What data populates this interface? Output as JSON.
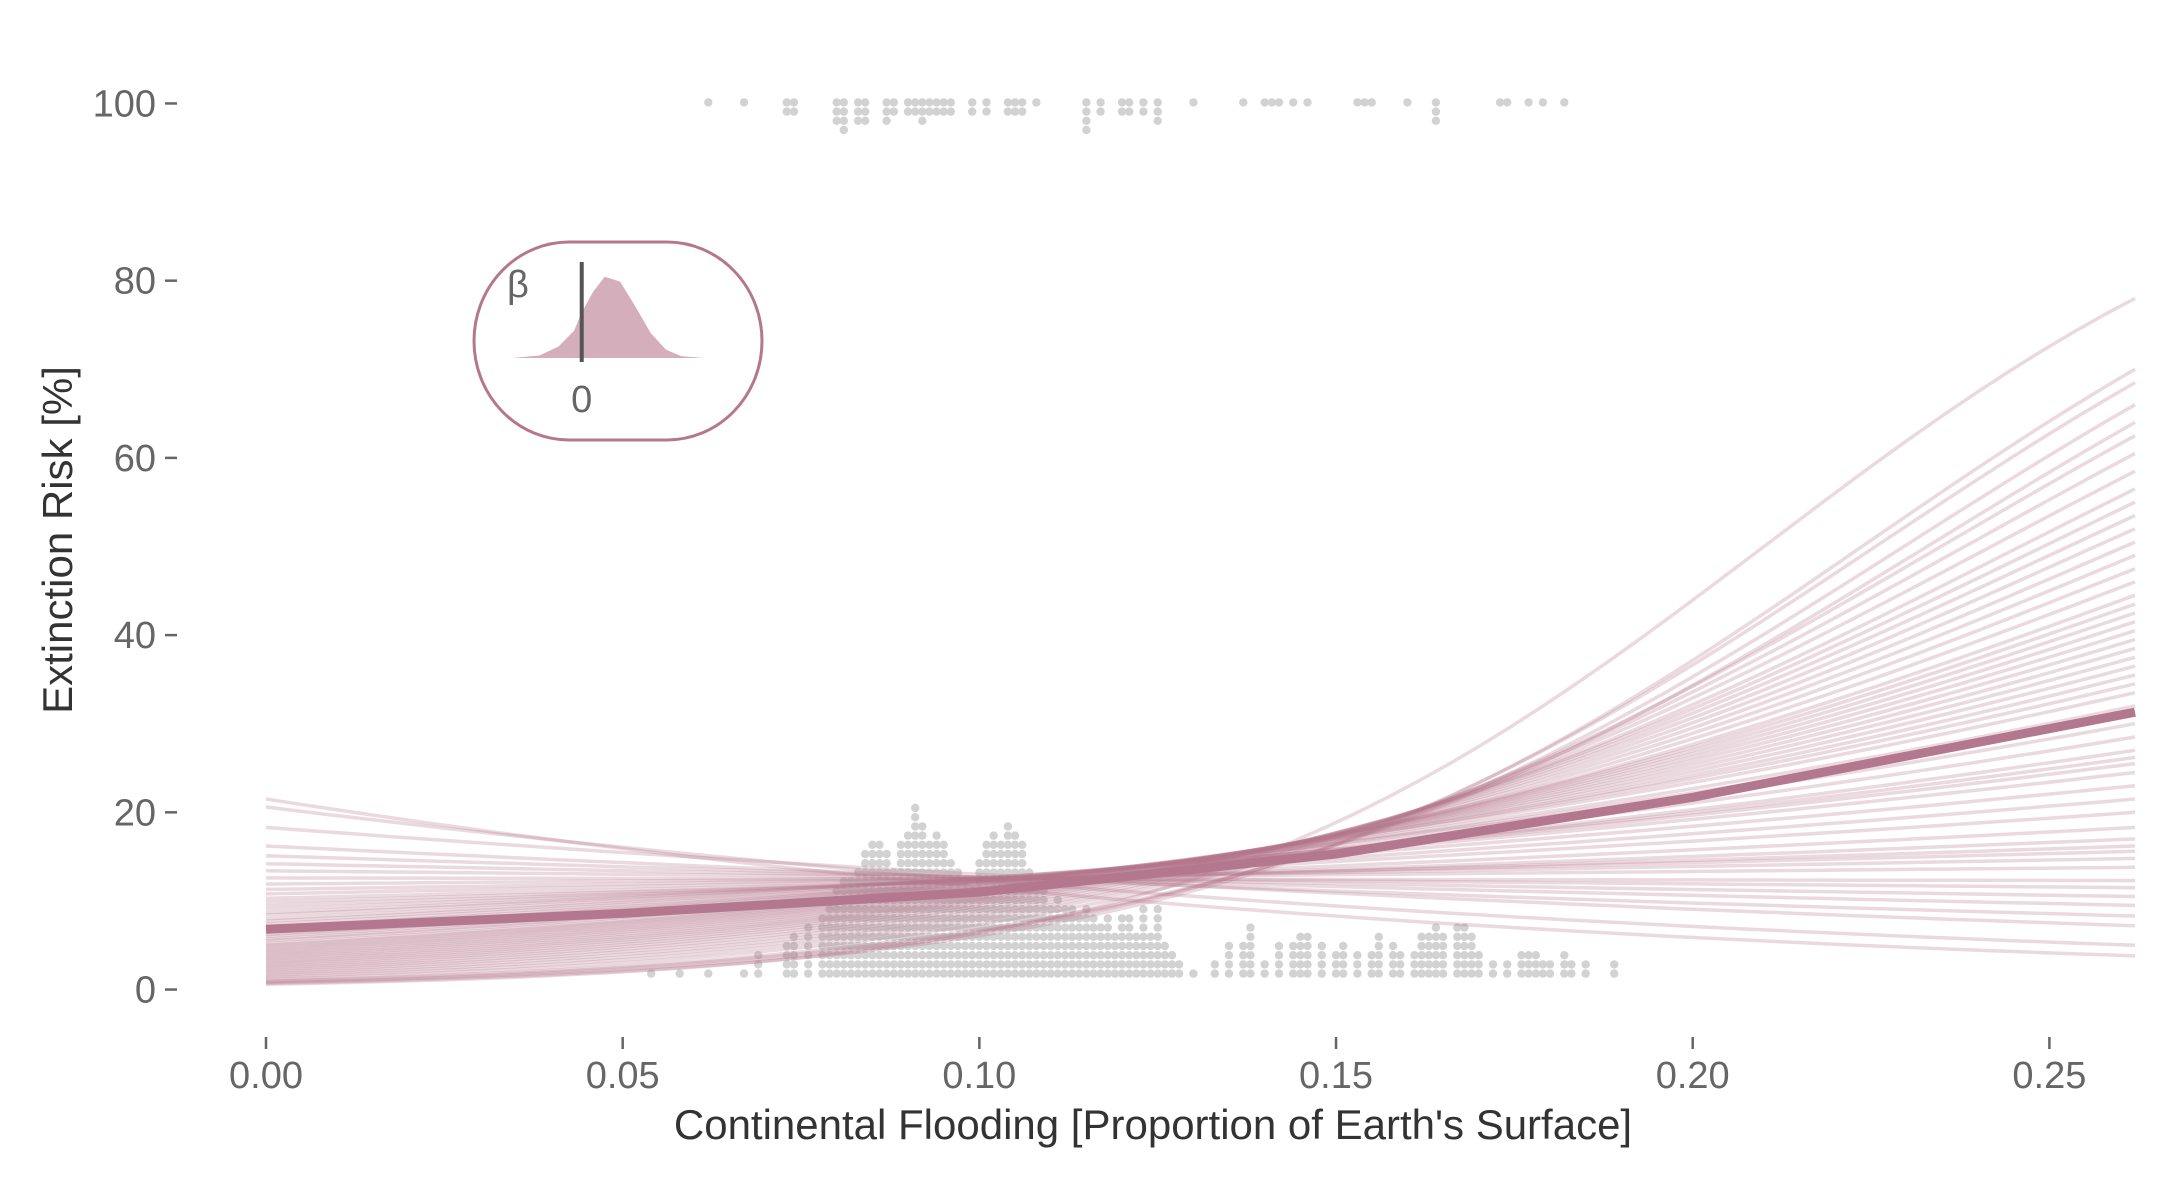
{
  "chart_data": {
    "type": "line",
    "title": "",
    "xlabel": "Continental Flooding [Proportion of Earth's Surface]",
    "ylabel": "Extinction Risk [%]",
    "xlim": [
      0.0,
      0.262
    ],
    "ylim": [
      -4,
      104
    ],
    "grid": false,
    "legend": "none",
    "x_ticks": [
      {
        "value": 0.0,
        "label": "0.00"
      },
      {
        "value": 0.05,
        "label": "0.05"
      },
      {
        "value": 0.1,
        "label": "0.10"
      },
      {
        "value": 0.15,
        "label": "0.15"
      },
      {
        "value": 0.2,
        "label": "0.20"
      },
      {
        "value": 0.25,
        "label": "0.25"
      }
    ],
    "y_ticks": [
      {
        "value": 0,
        "label": "0"
      },
      {
        "value": 20,
        "label": "20"
      },
      {
        "value": 40,
        "label": "40"
      },
      {
        "value": 60,
        "label": "60"
      },
      {
        "value": 80,
        "label": "80"
      },
      {
        "value": 100,
        "label": "100"
      }
    ],
    "colors": {
      "curve": "#b3788d",
      "posterior_fill": "#d4afbb",
      "points": "#d2d2d2",
      "inset_border": "#b3788d",
      "zero_line": "#555555"
    },
    "mean_curve": {
      "x": [
        0.0,
        0.05,
        0.1,
        0.15,
        0.2,
        0.262
      ],
      "y": [
        6.8,
        8.6,
        11.0,
        15.3,
        21.7,
        31.3
      ]
    },
    "posterior_draws_start_end": [
      [
        21.5,
        3.8
      ],
      [
        20.6,
        5.0
      ],
      [
        18.3,
        7.2
      ],
      [
        16.2,
        8.3
      ],
      [
        15.1,
        9.5
      ],
      [
        14.2,
        10.5
      ],
      [
        13.4,
        11.5
      ],
      [
        12.6,
        12.3
      ],
      [
        11.9,
        13.8
      ],
      [
        11.3,
        14.8
      ],
      [
        10.8,
        15.6
      ],
      [
        10.3,
        16.2
      ],
      [
        9.9,
        17.0
      ],
      [
        9.5,
        18.3
      ],
      [
        9.1,
        20.0
      ],
      [
        8.7,
        21.5
      ],
      [
        8.4,
        23.0
      ],
      [
        8.0,
        24.5
      ],
      [
        7.7,
        25.5
      ],
      [
        7.4,
        26.2
      ],
      [
        7.1,
        27.0
      ],
      [
        6.8,
        28.5
      ],
      [
        6.5,
        30.0
      ],
      [
        6.2,
        31.0
      ],
      [
        6.0,
        32.0
      ],
      [
        5.7,
        33.5
      ],
      [
        5.5,
        34.5
      ],
      [
        5.2,
        35.5
      ],
      [
        5.0,
        36.5
      ],
      [
        4.8,
        37.5
      ],
      [
        4.6,
        38.5
      ],
      [
        4.4,
        39.5
      ],
      [
        4.2,
        40.5
      ],
      [
        4.0,
        41.5
      ],
      [
        3.8,
        42.5
      ],
      [
        3.6,
        43.5
      ],
      [
        3.4,
        44.5
      ],
      [
        3.2,
        46.0
      ],
      [
        3.0,
        47.5
      ],
      [
        2.8,
        49.0
      ],
      [
        2.6,
        50.5
      ],
      [
        2.4,
        52.0
      ],
      [
        2.2,
        53.5
      ],
      [
        2.0,
        55.0
      ],
      [
        1.8,
        56.5
      ],
      [
        1.6,
        58.5
      ],
      [
        1.4,
        60.5
      ],
      [
        1.2,
        62.5
      ],
      [
        1.0,
        64.0
      ],
      [
        0.9,
        66.0
      ],
      [
        0.8,
        68.5
      ],
      [
        0.7,
        70.0
      ],
      [
        0.6,
        78.0
      ]
    ],
    "survived_points": {
      "y": 0,
      "bins": [
        [
          0.054,
          1
        ],
        [
          0.058,
          1
        ],
        [
          0.062,
          1
        ],
        [
          0.067,
          1
        ],
        [
          0.069,
          3
        ],
        [
          0.073,
          4
        ],
        [
          0.074,
          5
        ],
        [
          0.076,
          6
        ],
        [
          0.078,
          7
        ],
        [
          0.079,
          8
        ],
        [
          0.08,
          10
        ],
        [
          0.081,
          11
        ],
        [
          0.082,
          11
        ],
        [
          0.083,
          12
        ],
        [
          0.084,
          14
        ],
        [
          0.085,
          15
        ],
        [
          0.086,
          15
        ],
        [
          0.087,
          14
        ],
        [
          0.088,
          12
        ],
        [
          0.089,
          15
        ],
        [
          0.09,
          16
        ],
        [
          0.091,
          19
        ],
        [
          0.092,
          17
        ],
        [
          0.093,
          15
        ],
        [
          0.094,
          16
        ],
        [
          0.095,
          15
        ],
        [
          0.096,
          13
        ],
        [
          0.097,
          12
        ],
        [
          0.098,
          11
        ],
        [
          0.099,
          10
        ],
        [
          0.1,
          13
        ],
        [
          0.101,
          15
        ],
        [
          0.102,
          16
        ],
        [
          0.103,
          15
        ],
        [
          0.104,
          17
        ],
        [
          0.105,
          16
        ],
        [
          0.106,
          15
        ],
        [
          0.107,
          12
        ],
        [
          0.108,
          10
        ],
        [
          0.109,
          10
        ],
        [
          0.11,
          8
        ],
        [
          0.111,
          9
        ],
        [
          0.112,
          8
        ],
        [
          0.113,
          8
        ],
        [
          0.114,
          7
        ],
        [
          0.115,
          8
        ],
        [
          0.116,
          7
        ],
        [
          0.117,
          6
        ],
        [
          0.118,
          7
        ],
        [
          0.119,
          5
        ],
        [
          0.12,
          7
        ],
        [
          0.121,
          7
        ],
        [
          0.122,
          5
        ],
        [
          0.123,
          8
        ],
        [
          0.124,
          5
        ],
        [
          0.125,
          8
        ],
        [
          0.126,
          4
        ],
        [
          0.127,
          3
        ],
        [
          0.128,
          2
        ],
        [
          0.13,
          1
        ],
        [
          0.133,
          2
        ],
        [
          0.135,
          4
        ],
        [
          0.137,
          4
        ],
        [
          0.138,
          6
        ],
        [
          0.14,
          2
        ],
        [
          0.142,
          4
        ],
        [
          0.144,
          4
        ],
        [
          0.145,
          5
        ],
        [
          0.146,
          5
        ],
        [
          0.148,
          4
        ],
        [
          0.15,
          3
        ],
        [
          0.151,
          4
        ],
        [
          0.153,
          3
        ],
        [
          0.155,
          3
        ],
        [
          0.156,
          5
        ],
        [
          0.158,
          4
        ],
        [
          0.159,
          3
        ],
        [
          0.161,
          3
        ],
        [
          0.162,
          5
        ],
        [
          0.163,
          5
        ],
        [
          0.164,
          6
        ],
        [
          0.165,
          5
        ],
        [
          0.167,
          6
        ],
        [
          0.168,
          6
        ],
        [
          0.169,
          5
        ],
        [
          0.17,
          3
        ],
        [
          0.172,
          2
        ],
        [
          0.174,
          2
        ],
        [
          0.176,
          3
        ],
        [
          0.177,
          3
        ],
        [
          0.178,
          3
        ],
        [
          0.179,
          2
        ],
        [
          0.18,
          2
        ],
        [
          0.182,
          3
        ],
        [
          0.183,
          2
        ],
        [
          0.185,
          2
        ],
        [
          0.189,
          2
        ]
      ]
    },
    "extinct_points": {
      "y": 100,
      "bins": [
        [
          0.062,
          1
        ],
        [
          0.067,
          1
        ],
        [
          0.073,
          2
        ],
        [
          0.074,
          2
        ],
        [
          0.08,
          3
        ],
        [
          0.081,
          4
        ],
        [
          0.083,
          3
        ],
        [
          0.084,
          3
        ],
        [
          0.087,
          3
        ],
        [
          0.088,
          2
        ],
        [
          0.09,
          2
        ],
        [
          0.091,
          2
        ],
        [
          0.092,
          3
        ],
        [
          0.093,
          2
        ],
        [
          0.094,
          2
        ],
        [
          0.095,
          2
        ],
        [
          0.096,
          2
        ],
        [
          0.099,
          2
        ],
        [
          0.101,
          2
        ],
        [
          0.104,
          2
        ],
        [
          0.105,
          2
        ],
        [
          0.106,
          2
        ],
        [
          0.108,
          1
        ],
        [
          0.115,
          4
        ],
        [
          0.117,
          2
        ],
        [
          0.12,
          2
        ],
        [
          0.121,
          2
        ],
        [
          0.123,
          2
        ],
        [
          0.125,
          3
        ],
        [
          0.13,
          1
        ],
        [
          0.137,
          1
        ],
        [
          0.14,
          1
        ],
        [
          0.141,
          1
        ],
        [
          0.142,
          1
        ],
        [
          0.144,
          1
        ],
        [
          0.146,
          1
        ],
        [
          0.153,
          1
        ],
        [
          0.154,
          1
        ],
        [
          0.155,
          1
        ],
        [
          0.16,
          1
        ],
        [
          0.164,
          3
        ],
        [
          0.173,
          1
        ],
        [
          0.174,
          1
        ],
        [
          0.177,
          1
        ],
        [
          0.179,
          1
        ],
        [
          0.182,
          1
        ]
      ]
    },
    "inset": {
      "parameter_label": "β",
      "zero_label": "0",
      "x_range": [
        -1.0,
        1.75
      ],
      "density": {
        "x": [
          -0.9,
          -0.55,
          -0.3,
          -0.1,
          0.0,
          0.15,
          0.3,
          0.5,
          0.7,
          0.9,
          1.1,
          1.3,
          1.6
        ],
        "y": [
          0.0,
          0.03,
          0.14,
          0.33,
          0.55,
          0.8,
          0.98,
          0.92,
          0.62,
          0.3,
          0.1,
          0.02,
          0.0
        ]
      }
    }
  }
}
